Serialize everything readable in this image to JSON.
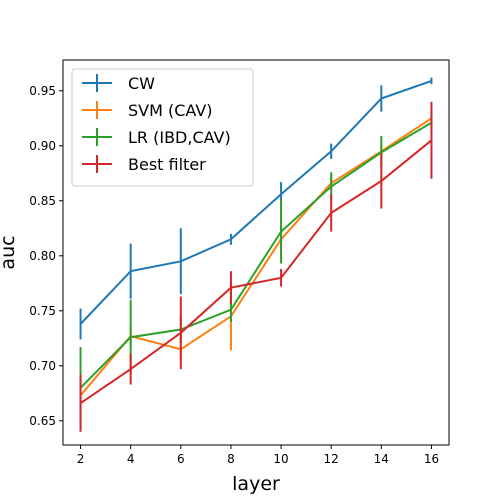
{
  "chart_data": {
    "type": "line",
    "title": "",
    "xlabel": "layer",
    "ylabel": "auc",
    "x": [
      2,
      4,
      6,
      8,
      10,
      12,
      14,
      16
    ],
    "xlim": [
      1.3,
      16.7
    ],
    "ylim": [
      0.628,
      0.978
    ],
    "xticks": [
      2,
      4,
      6,
      8,
      10,
      12,
      14,
      16
    ],
    "yticks": [
      0.65,
      0.7,
      0.75,
      0.8,
      0.85,
      0.9,
      0.95
    ],
    "ytick_labels": [
      "0.65",
      "0.70",
      "0.75",
      "0.80",
      "0.85",
      "0.90",
      "0.95"
    ],
    "grid": false,
    "legend_position": "upper-left",
    "series": [
      {
        "name": "CW",
        "color": "#1f77b4",
        "values": [
          0.738,
          0.786,
          0.795,
          0.815,
          0.856,
          0.895,
          0.943,
          0.959
        ],
        "errors": [
          0.014,
          0.025,
          0.03,
          0.005,
          0.011,
          0.007,
          0.012,
          0.003
        ]
      },
      {
        "name": "SVM (CAV)",
        "color": "#ff7f0e",
        "values": [
          0.673,
          0.727,
          0.715,
          0.745,
          0.815,
          0.866,
          0.895,
          0.925
        ],
        "errors": [
          0.012,
          0.01,
          0.01,
          0.031,
          0.012,
          0.007,
          0.006,
          0.007
        ]
      },
      {
        "name": "LR (IBD,CAV)",
        "color": "#2ca02c",
        "values": [
          0.68,
          0.726,
          0.733,
          0.751,
          0.822,
          0.863,
          0.894,
          0.921
        ],
        "errors": [
          0.037,
          0.034,
          0.012,
          0.011,
          0.029,
          0.013,
          0.015,
          0.006
        ]
      },
      {
        "name": "Best filter",
        "color": "#d62728",
        "values": [
          0.666,
          0.697,
          0.73,
          0.771,
          0.78,
          0.839,
          0.868,
          0.905
        ],
        "errors": [
          0.026,
          0.014,
          0.033,
          0.015,
          0.008,
          0.017,
          0.025,
          0.035
        ]
      }
    ]
  }
}
